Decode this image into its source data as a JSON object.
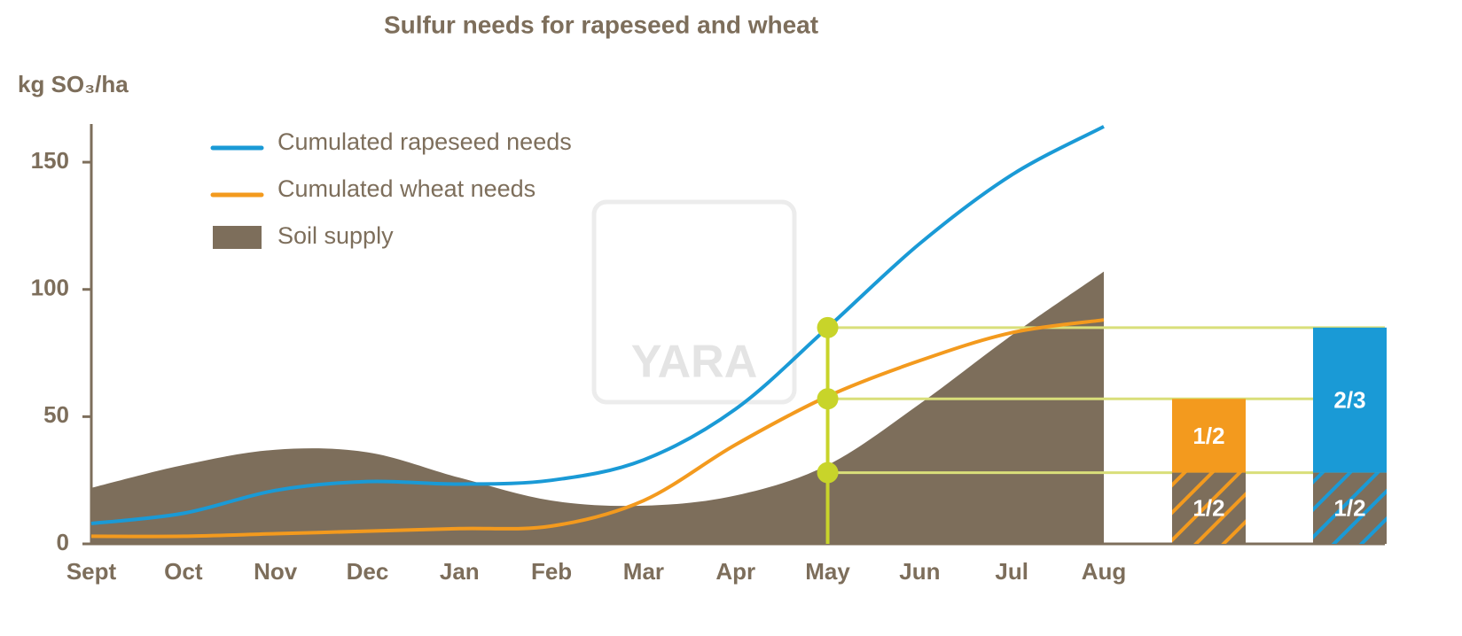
{
  "chart_data": {
    "type": "line",
    "title": "Sulfur needs for rapeseed and wheat",
    "y_label": "kg SO₃/ha",
    "watermark": "YARA",
    "categories": [
      "Sept",
      "Oct",
      "Nov",
      "Dec",
      "Jan",
      "Feb",
      "Mar",
      "Apr",
      "May",
      "Jun",
      "Jul",
      "Aug"
    ],
    "series": [
      {
        "name": "Cumulated rapeseed needs",
        "color": "#1a9ad6",
        "kind": "line",
        "values": [
          8,
          12,
          21,
          24.5,
          23.5,
          25,
          33,
          53,
          85,
          118,
          145,
          164
        ]
      },
      {
        "name": "Cumulated wheat needs",
        "color": "#f39a1e",
        "kind": "line",
        "values": [
          3,
          3,
          4,
          5,
          6,
          7,
          17,
          39,
          58,
          72,
          83,
          88
        ]
      },
      {
        "name": "Soil supply",
        "color": "#7d6e5b",
        "kind": "area",
        "values": [
          22,
          31,
          37,
          36,
          26,
          17,
          15,
          19,
          31,
          55,
          82,
          107
        ]
      }
    ],
    "markers": {
      "at": "May",
      "color": "#c8d42a",
      "values": [
        85,
        57,
        28
      ]
    },
    "split_bars": [
      {
        "color": "#f39a1e",
        "segments": [
          {
            "label": "1/2",
            "value": 28,
            "hatch": true
          },
          {
            "label": "1/2",
            "value": 29,
            "hatch": false
          }
        ]
      },
      {
        "color": "#1a9ad6",
        "segments": [
          {
            "label": "1/2",
            "value": 28,
            "hatch": true
          },
          {
            "label": "2/3",
            "value": 57,
            "hatch": false
          }
        ]
      }
    ],
    "ylim": [
      0,
      165
    ],
    "yticks": [
      0,
      50,
      100,
      150
    ]
  }
}
